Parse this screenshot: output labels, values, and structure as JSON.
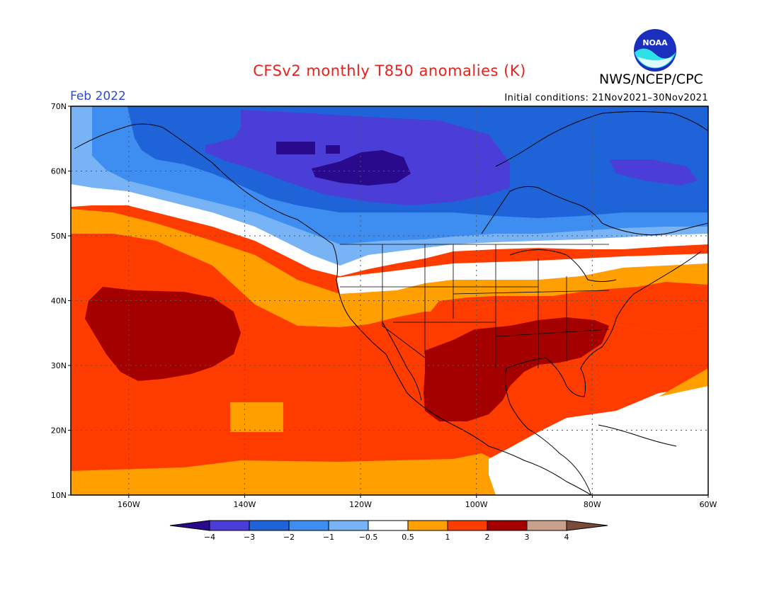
{
  "header": {
    "title": "CFSv2 monthly T850 anomalies (K)",
    "agency": "NWS/NCEP/CPC",
    "month": "Feb 2022",
    "initial_conditions": "Initial conditions: 21Nov2021–30Nov2021",
    "logo_text": "NOAA"
  },
  "map": {
    "projection": "cylindrical",
    "lon_range": [
      -170,
      -60
    ],
    "lat_range": [
      10,
      70
    ],
    "lat_labels": [
      "70N",
      "60N",
      "50N",
      "40N",
      "30N",
      "20N",
      "10N"
    ],
    "lon_labels": [
      "160W",
      "140W",
      "120W",
      "100W",
      "80W",
      "60W"
    ],
    "grid": "dotted every 20° lon / 10° lat",
    "anomaly_regions": [
      {
        "name": "Alaska / Canada cold",
        "level": "-3 to -4 core",
        "center": "65N 110W"
      },
      {
        "name": "Northeast Pacific cool",
        "level": "-1 to -2",
        "center": "55N 140W"
      },
      {
        "name": "Subtropical Pacific warm",
        "level": "2 to 3 core",
        "center": "34N 155W"
      },
      {
        "name": "South-central US / Mexico warm",
        "level": "2 to 3 core",
        "center": "32N 95W"
      },
      {
        "name": "Eastern US / Atlantic warm",
        "level": "1 to 2",
        "center": "35N 70W"
      },
      {
        "name": "Northern Plains near-normal",
        "level": "-0.5 to 0.5",
        "center": "45N 105W"
      }
    ]
  },
  "colorbar": {
    "labels": [
      "−4",
      "−3",
      "−2",
      "−1",
      "−0.5",
      "0.5",
      "1",
      "2",
      "3",
      "4"
    ],
    "bins": [
      {
        "range": "< -4",
        "color": "#2a0a8c"
      },
      {
        "range": "-4 to -3",
        "color": "#4b3ed8"
      },
      {
        "range": "-3 to -2",
        "color": "#1e64d8"
      },
      {
        "range": "-2 to -1",
        "color": "#3e8df0"
      },
      {
        "range": "-1 to -0.5",
        "color": "#78b4f5"
      },
      {
        "range": "-0.5 to 0.5",
        "color": "#ffffff"
      },
      {
        "range": "0.5 to 1",
        "color": "#ffa000"
      },
      {
        "range": "1 to 2",
        "color": "#ff3c00"
      },
      {
        "range": "2 to 3",
        "color": "#a40000"
      },
      {
        "range": "3 to 4",
        "color": "#c8a08c"
      },
      {
        "range": "> 4",
        "color": "#7a4a38"
      }
    ]
  }
}
